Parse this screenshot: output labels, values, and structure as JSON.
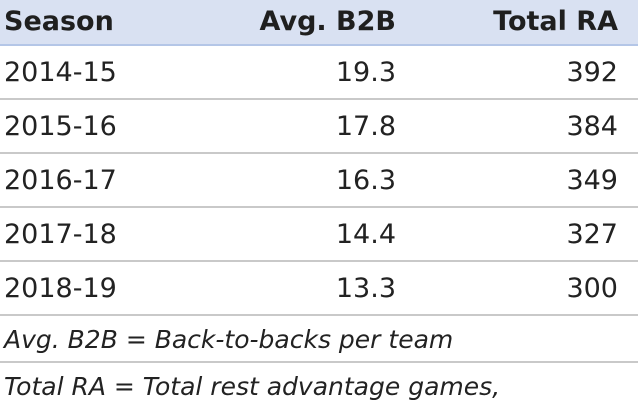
{
  "table": {
    "headers": [
      "Season",
      "Avg. B2B",
      "Total RA"
    ],
    "rows": [
      [
        "2014-15",
        "19.3",
        "392"
      ],
      [
        "2015-16",
        "17.8",
        "384"
      ],
      [
        "2016-17",
        "16.3",
        "349"
      ],
      [
        "2017-18",
        "14.4",
        "327"
      ],
      [
        "2018-19",
        "13.3",
        "300"
      ]
    ],
    "notes": [
      "Avg. B2B = Back-to-backs per team",
      "Total RA = Total rest advantage games,"
    ]
  },
  "colors": {
    "header_bg": "#d9e1f2",
    "header_border": "#b4c6e7",
    "row_border": "#c9c9c9"
  }
}
